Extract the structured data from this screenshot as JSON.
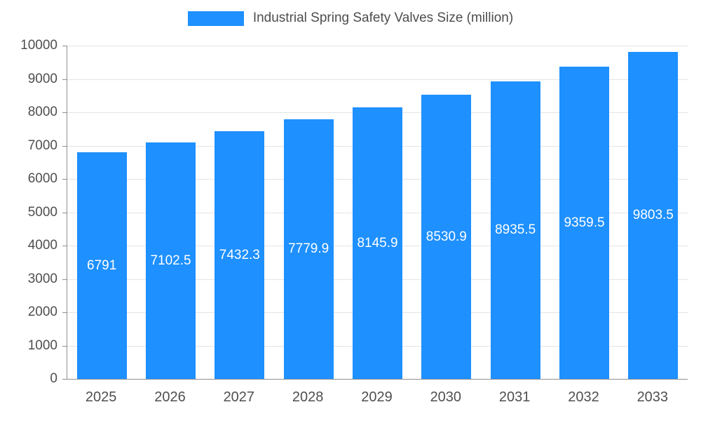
{
  "colors": {
    "bar": "#1E90FF",
    "axis_text": "#4f4f4f",
    "grid": "#e4e4e4",
    "axis_line": "#8f8f8f",
    "bar_label_text": "#ffffff"
  },
  "chart_data": {
    "type": "bar",
    "title": "Industrial Spring Safety Valves Size (million)",
    "categories": [
      "2025",
      "2026",
      "2027",
      "2028",
      "2029",
      "2030",
      "2031",
      "2032",
      "2033"
    ],
    "values": [
      6791,
      7102.5,
      7432.3,
      7779.9,
      8145.9,
      8530.9,
      8935.5,
      9359.5,
      9803.5
    ],
    "labels": [
      "6791",
      "7102.5",
      "7432.3",
      "7779.9",
      "8145.9",
      "8530.9",
      "8935.5",
      "9359.5",
      "9803.5"
    ],
    "xlabel": "",
    "ylabel": "",
    "ylim": [
      0,
      10000
    ],
    "ytick_step": 1000,
    "yticks": [
      0,
      1000,
      2000,
      3000,
      4000,
      5000,
      6000,
      7000,
      8000,
      9000,
      10000
    ],
    "grid": true,
    "legend_position": "top"
  }
}
